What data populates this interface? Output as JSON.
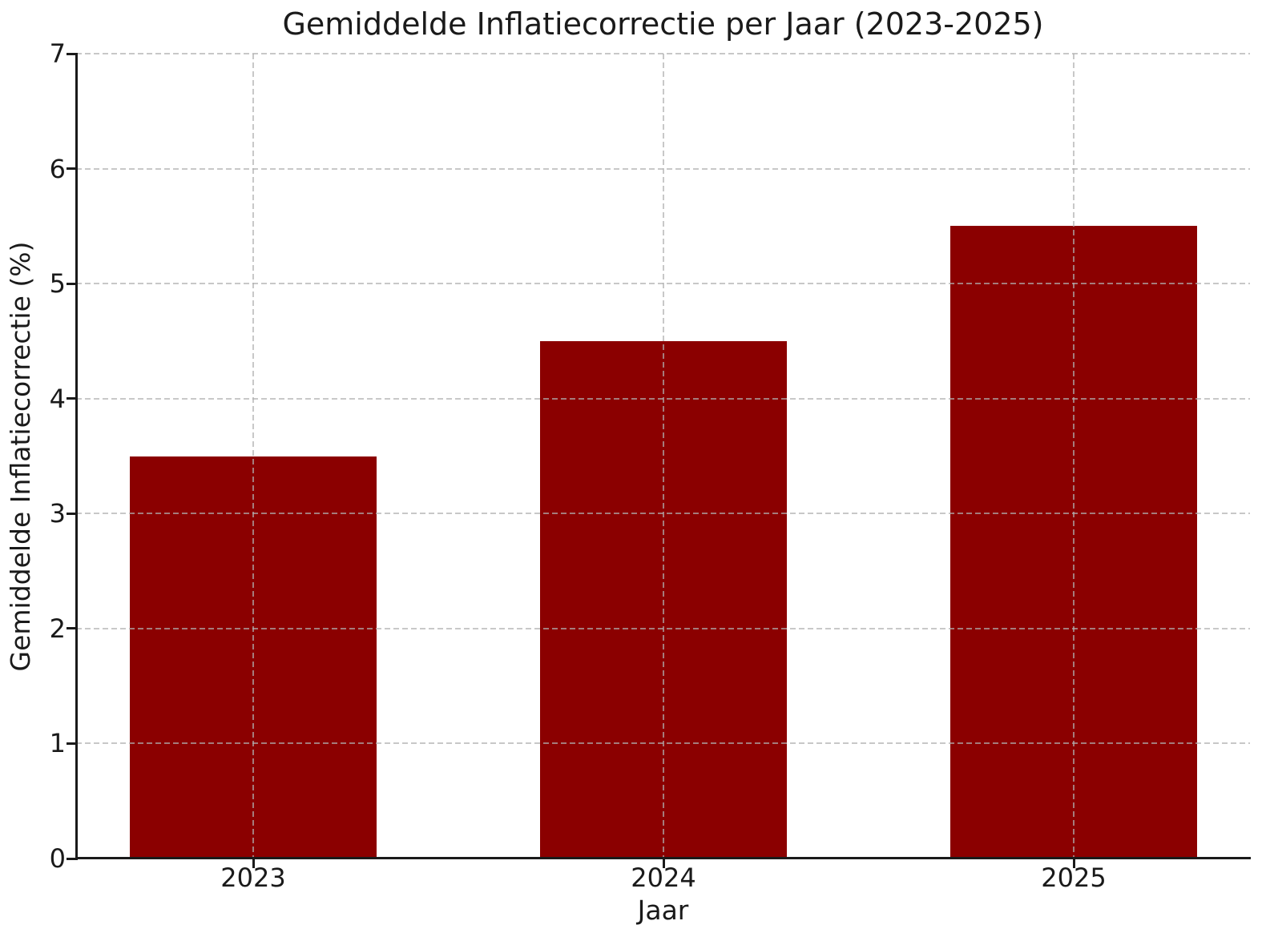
{
  "chart_data": {
    "type": "bar",
    "title": "Gemiddelde Inflatiecorrectie per Jaar (2023-2025)",
    "xlabel": "Jaar",
    "ylabel": "Gemiddelde Inflatiecorrectie (%)",
    "categories": [
      "2023",
      "2024",
      "2025"
    ],
    "values": [
      3.5,
      4.5,
      5.5
    ],
    "ylim": [
      0,
      7
    ],
    "yticks": [
      0,
      1,
      2,
      3,
      4,
      5,
      6,
      7
    ],
    "bar_color": "#8b0000",
    "grid": {
      "on": true,
      "style": "dashed",
      "color": "#b0b0b0",
      "alpha": 0.7,
      "over_bars": true
    },
    "legend_position": "none",
    "background_color": "#ffffff",
    "text_color": "#1a1a1a"
  }
}
